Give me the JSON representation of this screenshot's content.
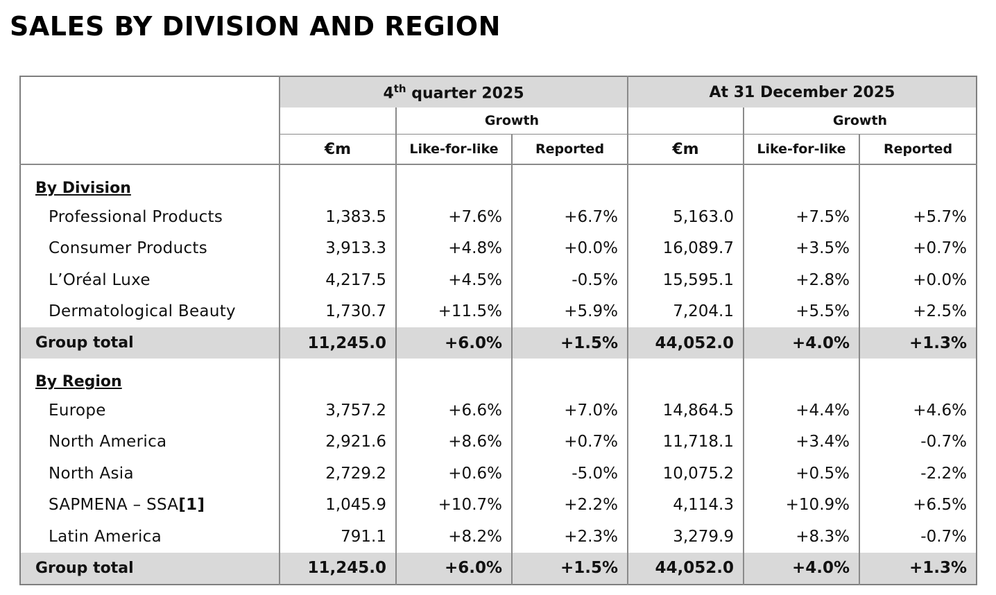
{
  "title": "SALES BY DIVISION AND REGION",
  "header": {
    "q4_prefix": "4",
    "q4_sup": "th",
    "q4_rest": " quarter 2025",
    "fy": "At 31 December 2025",
    "growth": "Growth",
    "unit": "€m",
    "lfl": "Like-for-like",
    "reported": "Reported"
  },
  "division": {
    "label": "By Division",
    "rows": [
      {
        "name": "Professional Products",
        "note": "",
        "values": [
          "1,383.5",
          "+7.6%",
          "+6.7%",
          "5,163.0",
          "+7.5%",
          "+5.7%"
        ]
      },
      {
        "name": "Consumer Products",
        "note": "",
        "values": [
          "3,913.3",
          "+4.8%",
          "+0.0%",
          "16,089.7",
          "+3.5%",
          "+0.7%"
        ]
      },
      {
        "name": "L’Oréal Luxe",
        "note": "",
        "values": [
          "4,217.5",
          "+4.5%",
          "-0.5%",
          "15,595.1",
          "+2.8%",
          "+0.0%"
        ]
      },
      {
        "name": "Dermatological Beauty",
        "note": "",
        "values": [
          "1,730.7",
          "+11.5%",
          "+5.9%",
          "7,204.1",
          "+5.5%",
          "+2.5%"
        ]
      }
    ],
    "total": {
      "name": "Group total",
      "values": [
        "11,245.0",
        "+6.0%",
        "+1.5%",
        "44,052.0",
        "+4.0%",
        "+1.3%"
      ]
    }
  },
  "region": {
    "label": "By Region",
    "rows": [
      {
        "name": "Europe",
        "note": "",
        "values": [
          "3,757.2",
          "+6.6%",
          "+7.0%",
          "14,864.5",
          "+4.4%",
          "+4.6%"
        ]
      },
      {
        "name": "North America",
        "note": "",
        "values": [
          "2,921.6",
          "+8.6%",
          "+0.7%",
          "11,718.1",
          "+3.4%",
          "-0.7%"
        ]
      },
      {
        "name": "North Asia",
        "note": "",
        "values": [
          "2,729.2",
          "+0.6%",
          "-5.0%",
          "10,075.2",
          "+0.5%",
          "-2.2%"
        ]
      },
      {
        "name": "SAPMENA – SSA",
        "note": "[1]",
        "values": [
          "1,045.9",
          "+10.7%",
          "+2.2%",
          "4,114.3",
          "+10.9%",
          "+6.5%"
        ]
      },
      {
        "name": "Latin America",
        "note": "",
        "values": [
          "791.1",
          "+8.2%",
          "+2.3%",
          "3,279.9",
          "+8.3%",
          "-0.7%"
        ]
      }
    ],
    "total": {
      "name": "Group total",
      "values": [
        "11,245.0",
        "+6.0%",
        "+1.5%",
        "44,052.0",
        "+4.0%",
        "+1.3%"
      ]
    }
  }
}
